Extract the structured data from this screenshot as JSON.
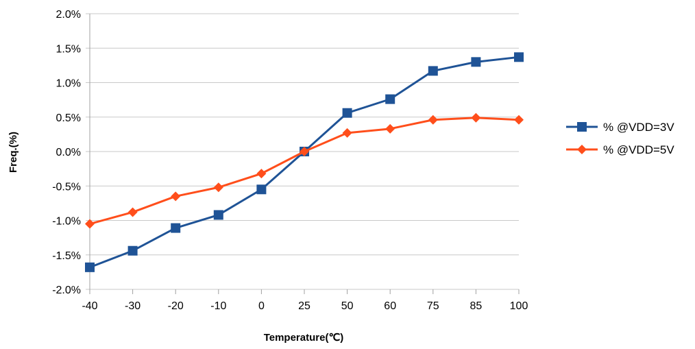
{
  "chart_data": {
    "type": "line",
    "title": "",
    "xlabel": "Temperature(℃)",
    "ylabel": "Freq.(%)",
    "categories": [
      "-40",
      "-30",
      "-20",
      "-10",
      "0",
      "25",
      "50",
      "60",
      "75",
      "85",
      "100"
    ],
    "ylim": [
      -2.0,
      2.0
    ],
    "yticks": [
      2.0,
      1.5,
      1.0,
      0.5,
      0.0,
      -0.5,
      -1.0,
      -1.5,
      -2.0
    ],
    "ytick_labels": [
      "2.0%",
      "1.5%",
      "1.0%",
      "0.5%",
      "0.0%",
      "-0.5%",
      "-1.0%",
      "-1.5%",
      "-2.0%"
    ],
    "grid": true,
    "legend_position": "right",
    "series": [
      {
        "name": "% @VDD=3V",
        "color": "#1F5396",
        "marker": "square",
        "values": [
          -1.68,
          -1.44,
          -1.11,
          -0.92,
          -0.55,
          0.0,
          0.56,
          0.76,
          1.17,
          1.3,
          1.37
        ]
      },
      {
        "name": "% @VDD=5V",
        "color": "#FF4E1B",
        "marker": "diamond",
        "values": [
          -1.05,
          -0.88,
          -0.65,
          -0.52,
          -0.32,
          0.0,
          0.27,
          0.33,
          0.46,
          0.49,
          0.46
        ]
      }
    ]
  },
  "colors": {
    "grid": "#C8C8C8",
    "axis": "#A0A0A0",
    "text": "#000000"
  }
}
